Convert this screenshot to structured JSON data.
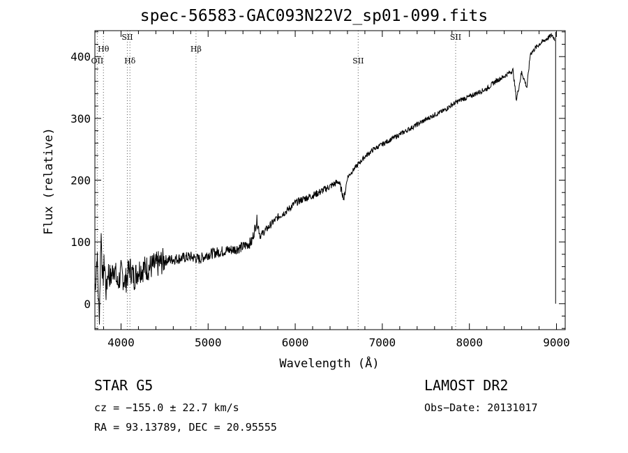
{
  "title": "spec-56583-GAC093N22V2_sp01-099.fits",
  "ylabel": "Flux (relative)",
  "xlabel": "Wavelength (Å)",
  "info": {
    "class": "STAR    G5",
    "cz": "cz = −155.0 ± 22.7 km/s",
    "radec": "RA =  93.13789, DEC =  20.95555",
    "survey": "LAMOST DR2",
    "obs_date": "Obs−Date: 20131017"
  },
  "chart_data": {
    "type": "line",
    "title": "spec-56583-GAC093N22V2_sp01-099.fits",
    "xlabel": "Wavelength (Å)",
    "ylabel": "Flux (relative)",
    "xlim": [
      3700,
      9100
    ],
    "ylim": [
      -42,
      442
    ],
    "xticks": [
      4000,
      5000,
      6000,
      7000,
      8000,
      9000
    ],
    "yticks": [
      0,
      100,
      200,
      300,
      400
    ],
    "grid": false,
    "series": [
      {
        "x": [
          3700,
          3725,
          3750,
          3770,
          3790,
          3810,
          3830,
          3850,
          3880,
          3920,
          3960,
          4000,
          4050,
          4100,
          4150,
          4200,
          4300,
          4400,
          4500,
          4600,
          4700,
          4800,
          4900,
          5000,
          5100,
          5200,
          5300,
          5400,
          5500,
          5560,
          5600,
          5700,
          5800,
          5900,
          6000,
          6100,
          6200,
          6300,
          6400,
          6500,
          6560,
          6600,
          6700,
          6800,
          6900,
          7000,
          7100,
          7200,
          7300,
          7400,
          7500,
          7600,
          7700,
          7800,
          7900,
          8000,
          8100,
          8200,
          8300,
          8400,
          8500,
          8540,
          8600,
          8660,
          8700,
          8800,
          8850,
          8900,
          8950,
          8980
        ],
        "y": [
          20,
          80,
          -30,
          120,
          35,
          70,
          15,
          55,
          40,
          62,
          30,
          50,
          35,
          58,
          42,
          55,
          58,
          62,
          70,
          72,
          74,
          76,
          72,
          80,
          83,
          86,
          88,
          92,
          100,
          135,
          110,
          125,
          140,
          150,
          163,
          170,
          175,
          182,
          190,
          198,
          170,
          205,
          222,
          238,
          250,
          258,
          266,
          274,
          282,
          290,
          298,
          306,
          312,
          322,
          330,
          335,
          342,
          348,
          360,
          368,
          378,
          330,
          375,
          350,
          405,
          420,
          425,
          430,
          435,
          428
        ]
      }
    ],
    "annotations": [
      {
        "label": "OII",
        "x": 3727
      },
      {
        "label": "Hθ",
        "x": 3798
      },
      {
        "label": "SII",
        "x": 4072
      },
      {
        "label": "Hδ",
        "x": 4102
      },
      {
        "label": "Hβ",
        "x": 4861
      },
      {
        "label": "SII",
        "x": 6723
      },
      {
        "label": "SII",
        "x": 7842
      }
    ]
  }
}
